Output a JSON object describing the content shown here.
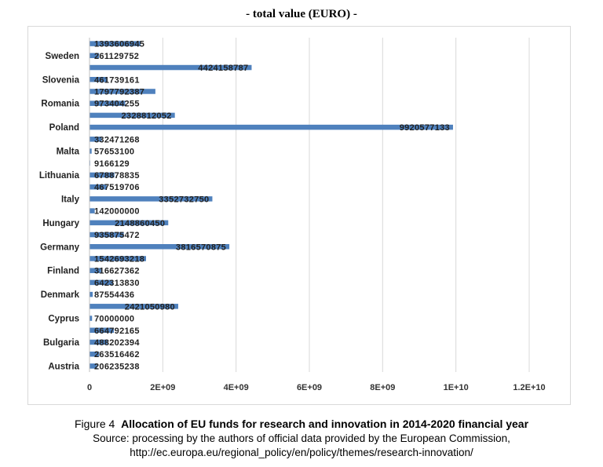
{
  "chart_data": {
    "type": "bar",
    "orientation": "horizontal",
    "title": "- total value (EURO) -",
    "xlabel": "",
    "ylabel": "",
    "xlim": [
      0,
      12000000000
    ],
    "x_ticks": [
      "0",
      "2E+09",
      "4E+09",
      "6E+09",
      "8E+09",
      "1E+10",
      "1.2E+10"
    ],
    "grid": "vertical",
    "bar_color": "#4f81bd",
    "category_labels": [
      "Austria",
      "Bulgaria",
      "Cyprus",
      "Denmark",
      "Finland",
      "Germany",
      "Hungary",
      "Italy",
      "Lithuania",
      "Malta",
      "Poland",
      "Romania",
      "Slovenia",
      "Sweden"
    ],
    "values": [
      206235238,
      263516462,
      488202394,
      664792165,
      70000000,
      2421050980,
      87554436,
      642313830,
      316627362,
      1542693218,
      3816570875,
      935875472,
      2148860450,
      142000000,
      3352732750,
      467519706,
      678878835,
      9166129,
      57653100,
      332471268,
      9920577133,
      2328812052,
      973404255,
      1797792387,
      461739161,
      4424158787,
      261129752,
      1393606945
    ],
    "value_labels": [
      "206235238",
      "263516462",
      "488202394",
      "664792165",
      "70000000",
      "2421050980",
      "87554436",
      "642313830",
      "316627362",
      "1542693218",
      "3816570875",
      "935875472",
      "2148860450",
      "142000000",
      "3352732750",
      "467519706",
      "678878835",
      "9166129",
      "57653100",
      "332471268",
      "9920577133",
      "2328812052",
      "973404255",
      "1797792387",
      "461739161",
      "4424158787",
      "261129752",
      "1393606945"
    ]
  },
  "caption": {
    "figure_prefix": "Figure 4",
    "figure_title": "Allocation of EU funds for research and innovation in 2014-2020 financial year",
    "source": "Source: processing by the authors of official data provided by the European Commission,",
    "url": "http://ec.europa.eu/regional_policy/en/policy/themes/research-innovation/"
  }
}
